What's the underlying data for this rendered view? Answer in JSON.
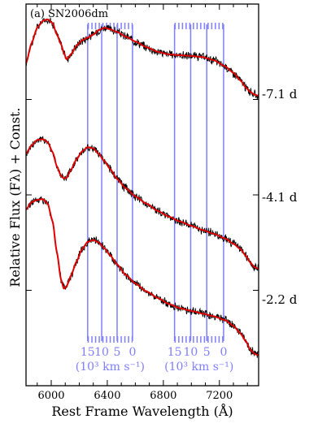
{
  "colors": {
    "observed": "#000000",
    "model": "#e00000",
    "velocity_grid": "#7f7fff",
    "axes": "#000000"
  },
  "chart_data": {
    "type": "line",
    "panel_label": "(a) SN2006dm",
    "xlabel": "Rest Frame Wavelength (Å)",
    "ylabel": "Relative Flux (Fλ) + Const.",
    "xlim": [
      5820,
      7480
    ],
    "ylim": [
      0,
      1
    ],
    "x_ticks": [
      6000,
      6400,
      6800,
      7200
    ],
    "x_tick_labels": [
      "6000",
      "6400",
      "6800",
      "7200"
    ],
    "y_tick_values": [
      0.25,
      0.5,
      0.75,
      1.0
    ],
    "grid": false,
    "legend": "none",
    "series": [
      {
        "name": "-7.1 d",
        "x": [
          5820,
          5860,
          5900,
          5940,
          5975,
          6010,
          6040,
          6070,
          6090,
          6110,
          6140,
          6180,
          6220,
          6260,
          6300,
          6340,
          6380,
          6420,
          6470,
          6530,
          6600,
          6680,
          6760,
          6840,
          6920,
          7000,
          7080,
          7160,
          7240,
          7300,
          7350,
          7390,
          7420,
          7450,
          7475
        ],
        "y": [
          0.845,
          0.898,
          0.938,
          0.956,
          0.96,
          0.95,
          0.92,
          0.895,
          0.872,
          0.855,
          0.868,
          0.891,
          0.905,
          0.912,
          0.92,
          0.932,
          0.938,
          0.934,
          0.927,
          0.915,
          0.902,
          0.887,
          0.875,
          0.868,
          0.866,
          0.864,
          0.861,
          0.853,
          0.837,
          0.82,
          0.8,
          0.781,
          0.77,
          0.763,
          0.76
        ]
      },
      {
        "name": "-4.1 d",
        "x": [
          5820,
          5860,
          5900,
          5940,
          5975,
          6010,
          6040,
          6070,
          6090,
          6110,
          6140,
          6180,
          6220,
          6260,
          6300,
          6340,
          6380,
          6420,
          6470,
          6530,
          6600,
          6680,
          6760,
          6840,
          6920,
          7000,
          7080,
          7160,
          7240,
          7300,
          7350,
          7390,
          7420,
          7450,
          7475
        ],
        "y": [
          0.608,
          0.63,
          0.644,
          0.646,
          0.638,
          0.612,
          0.575,
          0.55,
          0.543,
          0.545,
          0.565,
          0.593,
          0.614,
          0.625,
          0.622,
          0.607,
          0.588,
          0.568,
          0.542,
          0.518,
          0.496,
          0.477,
          0.458,
          0.443,
          0.43,
          0.419,
          0.408,
          0.398,
          0.386,
          0.372,
          0.358,
          0.34,
          0.323,
          0.311,
          0.307
        ]
      },
      {
        "name": "-2.2 d",
        "x": [
          5820,
          5860,
          5900,
          5940,
          5975,
          6010,
          6040,
          6070,
          6090,
          6110,
          6140,
          6180,
          6220,
          6260,
          6300,
          6340,
          6380,
          6420,
          6470,
          6530,
          6600,
          6680,
          6760,
          6840,
          6920,
          7000,
          7080,
          7160,
          7240,
          7300,
          7350,
          7390,
          7420,
          7450,
          7475
        ],
        "y": [
          0.462,
          0.481,
          0.487,
          0.489,
          0.477,
          0.43,
          0.35,
          0.278,
          0.254,
          0.261,
          0.288,
          0.325,
          0.358,
          0.377,
          0.382,
          0.375,
          0.36,
          0.342,
          0.318,
          0.291,
          0.268,
          0.247,
          0.23,
          0.214,
          0.203,
          0.196,
          0.189,
          0.182,
          0.172,
          0.157,
          0.137,
          0.116,
          0.095,
          0.084,
          0.08
        ]
      }
    ],
    "epoch_labels": [
      "-7.1 d",
      "-4.1 d",
      "-2.2 d"
    ],
    "velocity_scale": {
      "tick_labels": [
        "15",
        "10",
        "5",
        "0"
      ],
      "unit_label": "(10³ km s⁻¹)",
      "velocities_1000kms": [
        15,
        10,
        5,
        0
      ],
      "lines": [
        {
          "rest_wavelength": 6580,
          "wavelengths": [
            6260,
            6360,
            6470,
            6580
          ]
        },
        {
          "rest_wavelength": 7230,
          "wavelengths": [
            6880,
            6995,
            7110,
            7230
          ]
        }
      ]
    }
  }
}
